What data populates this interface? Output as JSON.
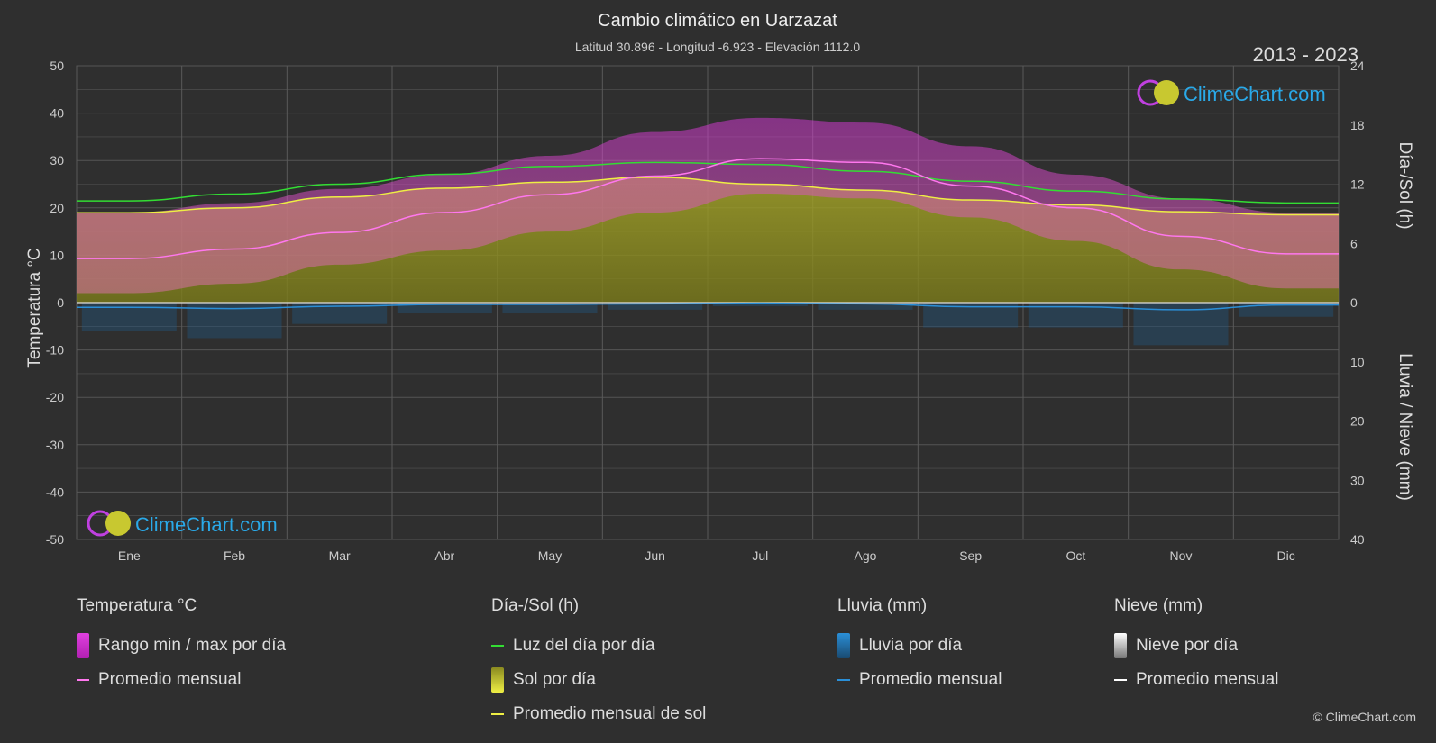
{
  "title": "Cambio climático en Uarzazat",
  "subtitle": "Latitud 30.896 - Longitud -6.923 - Elevación 1112.0",
  "years": "2013 - 2023",
  "logo_text": "ClimeChart.com",
  "copyright": "© ClimeChart.com",
  "colors": {
    "background": "#2f2f2f",
    "temp_range": "#e040e0",
    "temp_avg": "#ff77ee",
    "daylight": "#33dd33",
    "sun": "#cccc33",
    "sun_avg": "#eeee44",
    "rain": "#2a8fd8",
    "snow": "#ffffff"
  },
  "axes": {
    "left_label": "Temperatura °C",
    "right_top_label": "Día-/Sol (h)",
    "right_bottom_label": "Lluvia / Nieve (mm)",
    "left_ticks": [
      "50",
      "40",
      "30",
      "20",
      "10",
      "0",
      "-10",
      "-20",
      "-30",
      "-40",
      "-50"
    ],
    "right_top_ticks": [
      "24",
      "18",
      "12",
      "6",
      "0"
    ],
    "right_bottom_ticks": [
      "10",
      "20",
      "30",
      "40"
    ]
  },
  "legend": {
    "temp": {
      "header": "Temperatura °C",
      "range": "Rango min / max por día",
      "avg": "Promedio mensual"
    },
    "sun": {
      "header": "Día-/Sol (h)",
      "daylight": "Luz del día por día",
      "sun": "Sol por día",
      "avg": "Promedio mensual de sol"
    },
    "rain": {
      "header": "Lluvia (mm)",
      "daily": "Lluvia por día",
      "avg": "Promedio mensual"
    },
    "snow": {
      "header": "Nieve (mm)",
      "daily": "Nieve por día",
      "avg": "Promedio mensual"
    }
  },
  "chart_data": {
    "type": "area",
    "title": "Cambio climático en Uarzazat",
    "x_categories": [
      "Ene",
      "Feb",
      "Mar",
      "Abr",
      "May",
      "Jun",
      "Jul",
      "Ago",
      "Sep",
      "Oct",
      "Nov",
      "Dic"
    ],
    "y_left_range": [
      -50,
      50
    ],
    "y_right_top_range_hours": [
      0,
      24
    ],
    "y_right_bottom_range_mm": [
      0,
      40
    ],
    "grid": true,
    "series": [
      {
        "name": "Rango min / max por día",
        "unit": "°C",
        "min": [
          2,
          4,
          8,
          11,
          15,
          19,
          23,
          22,
          18,
          13,
          7,
          3
        ],
        "max": [
          19,
          21,
          24,
          27,
          31,
          36,
          39,
          38,
          33,
          27,
          22,
          19
        ]
      },
      {
        "name": "Promedio mensual",
        "unit": "°C",
        "values": [
          9.3,
          11.3,
          14.8,
          19.0,
          22.8,
          26.7,
          30.4,
          29.6,
          24.6,
          20.0,
          14.0,
          10.3
        ]
      },
      {
        "name": "Luz del día por día",
        "unit": "h",
        "values": [
          10.3,
          11.0,
          12.0,
          13.0,
          13.8,
          14.2,
          14.0,
          13.3,
          12.3,
          11.3,
          10.5,
          10.1
        ]
      },
      {
        "name": "Sol por día",
        "unit": "h",
        "values": [
          9.1,
          9.6,
          10.7,
          11.6,
          12.2,
          12.7,
          12.0,
          11.4,
          10.4,
          9.9,
          9.2,
          8.9
        ]
      },
      {
        "name": "Promedio mensual de sol",
        "unit": "h",
        "values": [
          9.1,
          9.6,
          10.7,
          11.6,
          12.2,
          12.7,
          12.0,
          11.4,
          10.4,
          9.9,
          9.2,
          8.9
        ]
      },
      {
        "name": "Lluvia por día (promedio mensual)",
        "unit": "mm",
        "values": [
          0.8,
          1.0,
          0.6,
          0.3,
          0.3,
          0.2,
          0.1,
          0.2,
          0.7,
          0.7,
          1.2,
          0.4
        ]
      },
      {
        "name": "Nieve por día (promedio mensual)",
        "unit": "mm",
        "values": [
          0,
          0,
          0,
          0,
          0,
          0,
          0,
          0,
          0,
          0,
          0,
          0
        ]
      }
    ]
  }
}
